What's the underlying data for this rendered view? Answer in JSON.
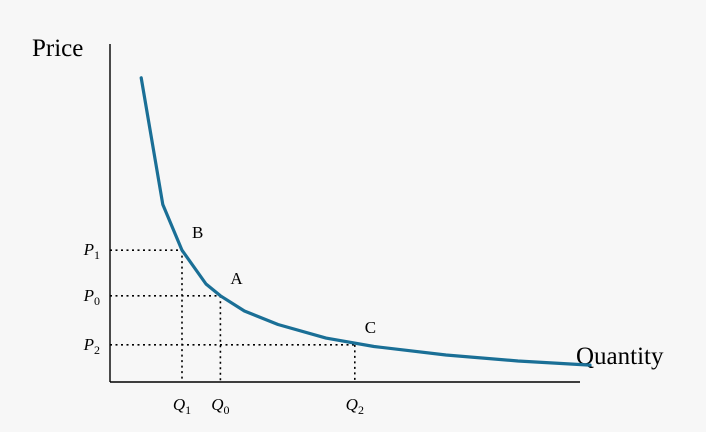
{
  "chart_data": {
    "type": "line",
    "title": "",
    "xlabel": "Quantity",
    "ylabel": "Price",
    "xlim": [
      0,
      10
    ],
    "ylim": [
      0,
      10
    ],
    "grid": false,
    "legend": "none",
    "colors": {
      "curve": "#1a6f96",
      "axis": "#000000",
      "background": "#f7f7f7"
    },
    "series": [
      {
        "values_x": [
          0.65,
          1.1,
          1.5,
          2.0,
          2.3,
          2.8,
          3.5,
          4.5,
          5.5,
          7.0,
          8.5,
          10.0
        ],
        "values_y": [
          9.0,
          5.25,
          3.9,
          2.9,
          2.55,
          2.1,
          1.7,
          1.3,
          1.05,
          0.8,
          0.62,
          0.5
        ]
      }
    ],
    "points": [
      {
        "label": "B",
        "x": 1.5,
        "y": 3.9
      },
      {
        "label": "A",
        "x": 2.3,
        "y": 2.55
      },
      {
        "label": "C",
        "x": 5.1,
        "y": 1.1
      }
    ],
    "ticks": {
      "y": [
        {
          "base": "P",
          "sub": "1",
          "value": 3.9
        },
        {
          "base": "P",
          "sub": "0",
          "value": 2.55
        },
        {
          "base": "P",
          "sub": "2",
          "value": 1.1
        }
      ],
      "x": [
        {
          "base": "Q",
          "sub": "1",
          "value": 1.5
        },
        {
          "base": "Q",
          "sub": "0",
          "value": 2.3
        },
        {
          "base": "Q",
          "sub": "2",
          "value": 5.1
        }
      ]
    }
  }
}
